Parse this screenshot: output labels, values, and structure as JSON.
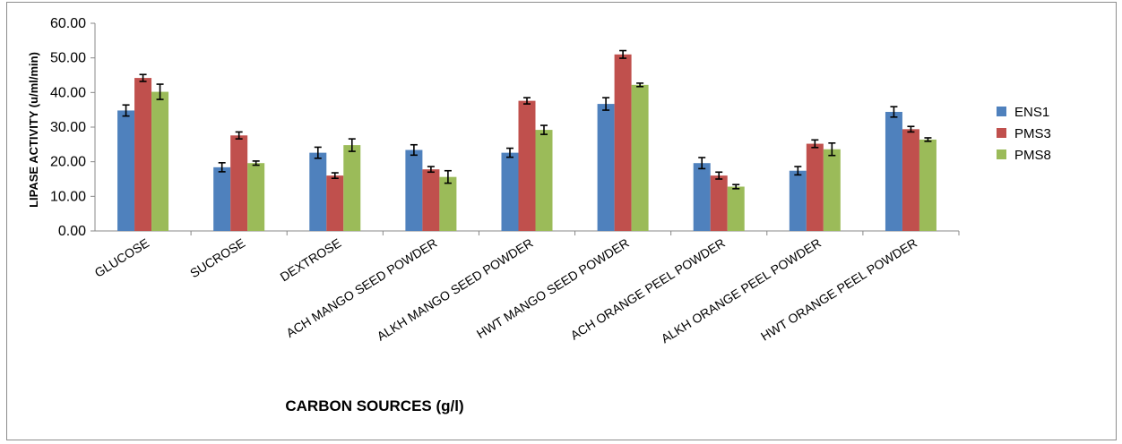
{
  "chart_data": {
    "type": "bar",
    "title": "",
    "xlabel": "CARBON SOURCES (g/l)",
    "ylabel": "LIPASE ACTIVITY (u/ml/min)",
    "ylim": [
      0,
      60
    ],
    "yticks": [
      "0.00",
      "10.00",
      "20.00",
      "30.00",
      "40.00",
      "50.00",
      "60.00"
    ],
    "categories": [
      "GLUCOSE",
      "SUCROSE",
      "DEXTROSE",
      "ACH MANGO SEED POWDER",
      "ALKH MANGO SEED  POWDER",
      "HWT MANGO SEED  POWDER",
      "ACH ORANGE PEEL POWDER",
      "ALKH ORANGE PEEL POWDER",
      "HWT ORANGE PEEL POWDER"
    ],
    "series": [
      {
        "name": "ENS1",
        "color": "#4f81bd",
        "values": [
          34.8,
          18.4,
          22.6,
          23.4,
          22.6,
          36.7,
          19.6,
          17.4,
          34.4
        ],
        "errors": [
          1.6,
          1.3,
          1.6,
          1.5,
          1.3,
          1.8,
          1.6,
          1.2,
          1.5
        ]
      },
      {
        "name": "PMS3",
        "color": "#c0504d",
        "values": [
          44.2,
          27.6,
          16.0,
          17.8,
          37.6,
          51.0,
          16.0,
          25.2,
          29.4
        ],
        "errors": [
          1.0,
          1.0,
          0.8,
          0.8,
          0.9,
          1.1,
          1.0,
          1.1,
          0.8
        ]
      },
      {
        "name": "PMS8",
        "color": "#9bbb59",
        "values": [
          40.2,
          19.6,
          24.8,
          15.6,
          29.2,
          42.2,
          12.8,
          23.6,
          26.4
        ],
        "errors": [
          2.2,
          0.6,
          1.8,
          1.8,
          1.3,
          0.5,
          0.6,
          1.8,
          0.5
        ]
      }
    ],
    "grid": false,
    "legend_position": "right"
  }
}
